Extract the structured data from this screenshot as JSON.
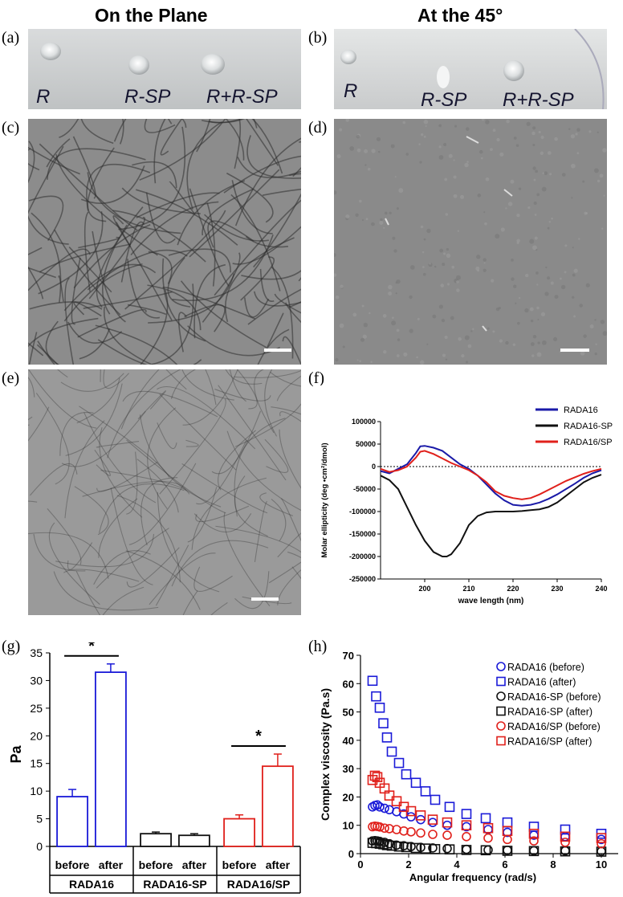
{
  "headings": {
    "left": "On the Plane",
    "right": "At the 45°"
  },
  "panels": {
    "a": {
      "label": "(a)",
      "samples": [
        "R",
        "R-SP",
        "R+R-SP"
      ]
    },
    "b": {
      "label": "(b)",
      "samples": [
        "R",
        "R-SP",
        "R+R-SP"
      ]
    },
    "c": {
      "label": "(c)"
    },
    "d": {
      "label": "(d)"
    },
    "e": {
      "label": "(e)"
    },
    "f": {
      "label": "(f)"
    },
    "g": {
      "label": "(g)"
    },
    "h": {
      "label": "(h)"
    }
  },
  "chart_data": [
    {
      "panel": "f",
      "type": "line",
      "xlabel": "wave length (nm)",
      "ylabel": "Molar ellipticity (deg •cm²/dmol)",
      "xlim": [
        190,
        240
      ],
      "ylim": [
        -250000,
        100000
      ],
      "xticks": [
        200,
        210,
        220,
        230,
        240
      ],
      "yticks": [
        100000,
        50000,
        0,
        -50000,
        -100000,
        -150000,
        -200000,
        -250000
      ],
      "ytick_labels": [
        "100000",
        "50000",
        "0",
        "-50000",
        "-100000",
        "-150000",
        "-200000",
        "-250000"
      ],
      "reference_line": 0,
      "legend": "top-right",
      "series": [
        {
          "name": "RADA16",
          "color": "#1a1aa8",
          "x": [
            190,
            192,
            194,
            196,
            198,
            199,
            200,
            202,
            204,
            206,
            208,
            210,
            212,
            214,
            216,
            218,
            220,
            222,
            224,
            226,
            228,
            230,
            232,
            234,
            236,
            238,
            240
          ],
          "y": [
            -10000,
            -15000,
            -5000,
            5000,
            30000,
            45000,
            46000,
            42000,
            35000,
            20000,
            5000,
            -5000,
            -20000,
            -40000,
            -60000,
            -75000,
            -85000,
            -87000,
            -85000,
            -80000,
            -72000,
            -62000,
            -50000,
            -38000,
            -25000,
            -15000,
            -8000
          ]
        },
        {
          "name": "RADA16-SP",
          "color": "#111111",
          "x": [
            190,
            192,
            194,
            196,
            198,
            200,
            202,
            204,
            205,
            206,
            208,
            210,
            212,
            214,
            216,
            218,
            220,
            222,
            224,
            226,
            228,
            230,
            232,
            234,
            236,
            238,
            240
          ],
          "y": [
            -20000,
            -30000,
            -50000,
            -90000,
            -130000,
            -165000,
            -190000,
            -200000,
            -200000,
            -195000,
            -170000,
            -130000,
            -110000,
            -102000,
            -100000,
            -100000,
            -100000,
            -99000,
            -97000,
            -95000,
            -90000,
            -80000,
            -65000,
            -50000,
            -35000,
            -25000,
            -18000
          ]
        },
        {
          "name": "RADA16/SP",
          "color": "#e0201b",
          "x": [
            190,
            192,
            194,
            196,
            198,
            199,
            200,
            202,
            204,
            206,
            208,
            210,
            212,
            214,
            216,
            218,
            220,
            222,
            224,
            226,
            228,
            230,
            232,
            234,
            236,
            238,
            240
          ],
          "y": [
            -5000,
            -12000,
            -8000,
            0,
            20000,
            33000,
            35000,
            28000,
            18000,
            8000,
            0,
            -8000,
            -20000,
            -35000,
            -55000,
            -65000,
            -70000,
            -73000,
            -70000,
            -62000,
            -52000,
            -42000,
            -32000,
            -24000,
            -16000,
            -10000,
            -5000
          ]
        }
      ]
    },
    {
      "panel": "g",
      "type": "bar",
      "ylabel": "Pa",
      "ylim": [
        0,
        35
      ],
      "yticks": [
        0,
        5,
        10,
        15,
        20,
        25,
        30,
        35
      ],
      "groups": [
        "RADA16",
        "RADA16-SP",
        "RADA16/SP"
      ],
      "bar_labels": [
        "before",
        "after"
      ],
      "colors": [
        "#1a1ad8",
        "#111111",
        "#e0201b"
      ],
      "values": [
        [
          9.0,
          31.5
        ],
        [
          2.3,
          2.0
        ],
        [
          5.0,
          14.5
        ]
      ],
      "errors": [
        [
          1.3,
          1.5
        ],
        [
          0.3,
          0.3
        ],
        [
          0.7,
          2.2
        ]
      ],
      "significance": [
        {
          "group": 0,
          "label": "*"
        },
        {
          "group": 2,
          "label": "*"
        }
      ]
    },
    {
      "panel": "h",
      "type": "scatter",
      "xlabel": "Angular frequency (rad/s)",
      "ylabel": "Complex viscosity (Pa.s)",
      "xlim": [
        0,
        11
      ],
      "ylim": [
        0,
        70
      ],
      "xticks": [
        0,
        2,
        4,
        6,
        8,
        10
      ],
      "yticks": [
        0,
        10,
        20,
        30,
        40,
        50,
        60,
        70
      ],
      "legend": "top-right",
      "series": [
        {
          "name": "RADA16 (before)",
          "marker": "circle",
          "color": "#1a1ad8",
          "x": [
            0.5,
            0.6,
            0.7,
            0.8,
            1.0,
            1.2,
            1.5,
            1.8,
            2.1,
            2.5,
            3.0,
            3.6,
            4.4,
            5.3,
            6.1,
            7.2,
            8.5,
            10.0
          ],
          "y": [
            16.5,
            17.0,
            17.2,
            16.5,
            16.0,
            15.5,
            14.8,
            14.0,
            13.0,
            12.0,
            11.0,
            10.0,
            9.5,
            8.5,
            7.5,
            6.5,
            6.0,
            5.0
          ]
        },
        {
          "name": "RADA16 (after)",
          "marker": "square",
          "color": "#1a1ad8",
          "x": [
            0.5,
            0.65,
            0.8,
            0.95,
            1.1,
            1.3,
            1.6,
            1.9,
            2.3,
            2.7,
            3.1,
            3.7,
            4.4,
            5.2,
            6.1,
            7.2,
            8.5,
            10.0
          ],
          "y": [
            61.0,
            55.5,
            51.5,
            46.0,
            41.0,
            36.0,
            32.0,
            28.0,
            25.0,
            22.0,
            19.0,
            16.5,
            14.0,
            12.5,
            11.0,
            9.5,
            8.5,
            7.0
          ]
        },
        {
          "name": "RADA16-SP (before)",
          "marker": "circle",
          "color": "#111111",
          "x": [
            0.5,
            0.6,
            0.7,
            0.8,
            1.0,
            1.2,
            1.5,
            1.8,
            2.1,
            2.5,
            3.0,
            3.6,
            4.4,
            5.3,
            6.1,
            7.2,
            8.5,
            10.0
          ],
          "y": [
            4.5,
            4.6,
            4.5,
            4.3,
            4.0,
            3.5,
            3.0,
            2.8,
            2.5,
            2.2,
            2.0,
            1.8,
            1.5,
            1.3,
            1.2,
            1.0,
            1.0,
            0.8
          ]
        },
        {
          "name": "RADA16-SP (after)",
          "marker": "square",
          "color": "#111111",
          "x": [
            0.5,
            0.65,
            0.8,
            0.95,
            1.1,
            1.3,
            1.6,
            1.9,
            2.3,
            2.7,
            3.1,
            3.7,
            4.4,
            5.2,
            6.1,
            7.2,
            8.5,
            10.0
          ],
          "y": [
            3.8,
            3.7,
            3.5,
            3.3,
            3.0,
            2.8,
            2.5,
            2.3,
            2.0,
            1.8,
            1.6,
            1.5,
            1.3,
            1.2,
            1.0,
            0.9,
            0.8,
            0.7
          ]
        },
        {
          "name": "RADA16/SP (before)",
          "marker": "circle",
          "color": "#e0201b",
          "x": [
            0.5,
            0.6,
            0.7,
            0.8,
            1.0,
            1.2,
            1.5,
            1.8,
            2.1,
            2.5,
            3.0,
            3.6,
            4.4,
            5.3,
            6.1,
            7.2,
            8.5,
            10.0
          ],
          "y": [
            9.5,
            9.7,
            9.6,
            9.4,
            9.0,
            8.8,
            8.5,
            8.0,
            7.7,
            7.3,
            6.8,
            6.5,
            6.0,
            5.5,
            5.0,
            4.5,
            4.0,
            3.5
          ]
        },
        {
          "name": "RADA16/SP (after)",
          "marker": "square",
          "color": "#e0201b",
          "x": [
            0.5,
            0.6,
            0.7,
            0.8,
            1.0,
            1.2,
            1.5,
            1.8,
            2.1,
            2.5,
            3.0,
            3.6,
            4.4,
            5.3,
            6.1,
            7.2,
            8.5,
            10.0
          ],
          "y": [
            26.0,
            27.5,
            27.0,
            25.0,
            23.0,
            20.5,
            18.5,
            16.5,
            15.0,
            13.5,
            12.0,
            11.0,
            10.0,
            9.0,
            8.0,
            7.0,
            6.0,
            5.5
          ]
        }
      ]
    }
  ]
}
